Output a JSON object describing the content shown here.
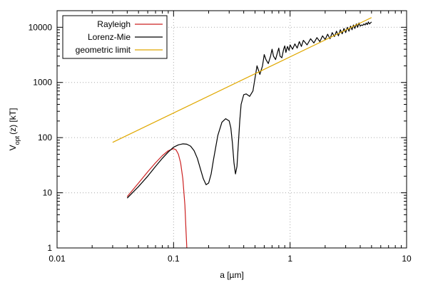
{
  "chart_data": {
    "type": "line",
    "title": "",
    "xlabel": "a [µm]",
    "ylabel": {
      "main": "V",
      "sub": "opt",
      "rest": "(z) [kT]"
    },
    "xscale": "log",
    "yscale": "log",
    "xlim": [
      0.01,
      10
    ],
    "ylim": [
      1,
      20000
    ],
    "x_ticks": [
      {
        "value": 0.01,
        "label": "0.01"
      },
      {
        "value": 0.1,
        "label": "0.1"
      },
      {
        "value": 1,
        "label": "1"
      },
      {
        "value": 10,
        "label": "10"
      }
    ],
    "y_ticks": [
      {
        "value": 1,
        "label": "1"
      },
      {
        "value": 10,
        "label": "10"
      },
      {
        "value": 100,
        "label": "100"
      },
      {
        "value": 1000,
        "label": "1000"
      },
      {
        "value": 10000,
        "label": "10000"
      }
    ],
    "grid": true,
    "legend_position": "top-left",
    "series": [
      {
        "name": "Rayleigh",
        "color": "#cc2222",
        "x": [
          0.04,
          0.05,
          0.06,
          0.07,
          0.08,
          0.09,
          0.1,
          0.105,
          0.11,
          0.115,
          0.12,
          0.125,
          0.128,
          0.13
        ],
        "y": [
          8.5,
          15,
          24,
          35,
          47,
          58,
          63,
          60,
          50,
          35,
          18,
          6,
          2,
          1
        ]
      },
      {
        "name": "Lorenz-Mie",
        "color": "#000000",
        "x": [
          0.04,
          0.05,
          0.06,
          0.07,
          0.08,
          0.09,
          0.1,
          0.11,
          0.12,
          0.13,
          0.14,
          0.15,
          0.16,
          0.17,
          0.18,
          0.19,
          0.2,
          0.21,
          0.22,
          0.24,
          0.26,
          0.28,
          0.3,
          0.31,
          0.32,
          0.33,
          0.34,
          0.35,
          0.36,
          0.37,
          0.38,
          0.4,
          0.42,
          0.45,
          0.48,
          0.5,
          0.52,
          0.55,
          0.58,
          0.6,
          0.62,
          0.65,
          0.68,
          0.7,
          0.72,
          0.75,
          0.78,
          0.8,
          0.82,
          0.85,
          0.88,
          0.9,
          0.92,
          0.95,
          0.98,
          1.0,
          1.05,
          1.1,
          1.15,
          1.2,
          1.25,
          1.3,
          1.4,
          1.5,
          1.6,
          1.7,
          1.8,
          1.9,
          2.0,
          2.1,
          2.2,
          2.3,
          2.4,
          2.5,
          2.6,
          2.7,
          2.8,
          2.9,
          3.0,
          3.1,
          3.2,
          3.3,
          3.4,
          3.5,
          3.6,
          3.7,
          3.8,
          3.9,
          4.0,
          4.1,
          4.2,
          4.3,
          4.4,
          4.5,
          4.6,
          4.7,
          4.8,
          4.9,
          5.0
        ],
        "y": [
          8,
          13,
          20,
          30,
          42,
          55,
          67,
          74,
          77,
          76,
          70,
          58,
          42,
          27,
          18,
          14,
          15,
          22,
          40,
          110,
          190,
          220,
          200,
          150,
          80,
          35,
          22,
          30,
          80,
          200,
          400,
          600,
          620,
          560,
          700,
          1200,
          2000,
          1400,
          2000,
          3200,
          2600,
          2200,
          3000,
          4000,
          3000,
          2600,
          3500,
          4200,
          3000,
          2800,
          4000,
          4600,
          3500,
          4500,
          3800,
          4800,
          4000,
          5000,
          4200,
          5500,
          4500,
          5800,
          4800,
          6200,
          5200,
          6500,
          5500,
          7000,
          6000,
          7500,
          6200,
          8000,
          6800,
          8500,
          7000,
          9000,
          7600,
          9500,
          8000,
          10000,
          8500,
          10500,
          9000,
          11000,
          9500,
          11500,
          10000,
          12000,
          10500,
          11000,
          10800,
          11500,
          11000,
          12000,
          11200,
          12500,
          11500,
          12000,
          12500
        ]
      },
      {
        "name": "geometric limit",
        "color": "#e0a800",
        "x": [
          0.03,
          5.0
        ],
        "y": [
          82,
          15000
        ]
      }
    ]
  }
}
